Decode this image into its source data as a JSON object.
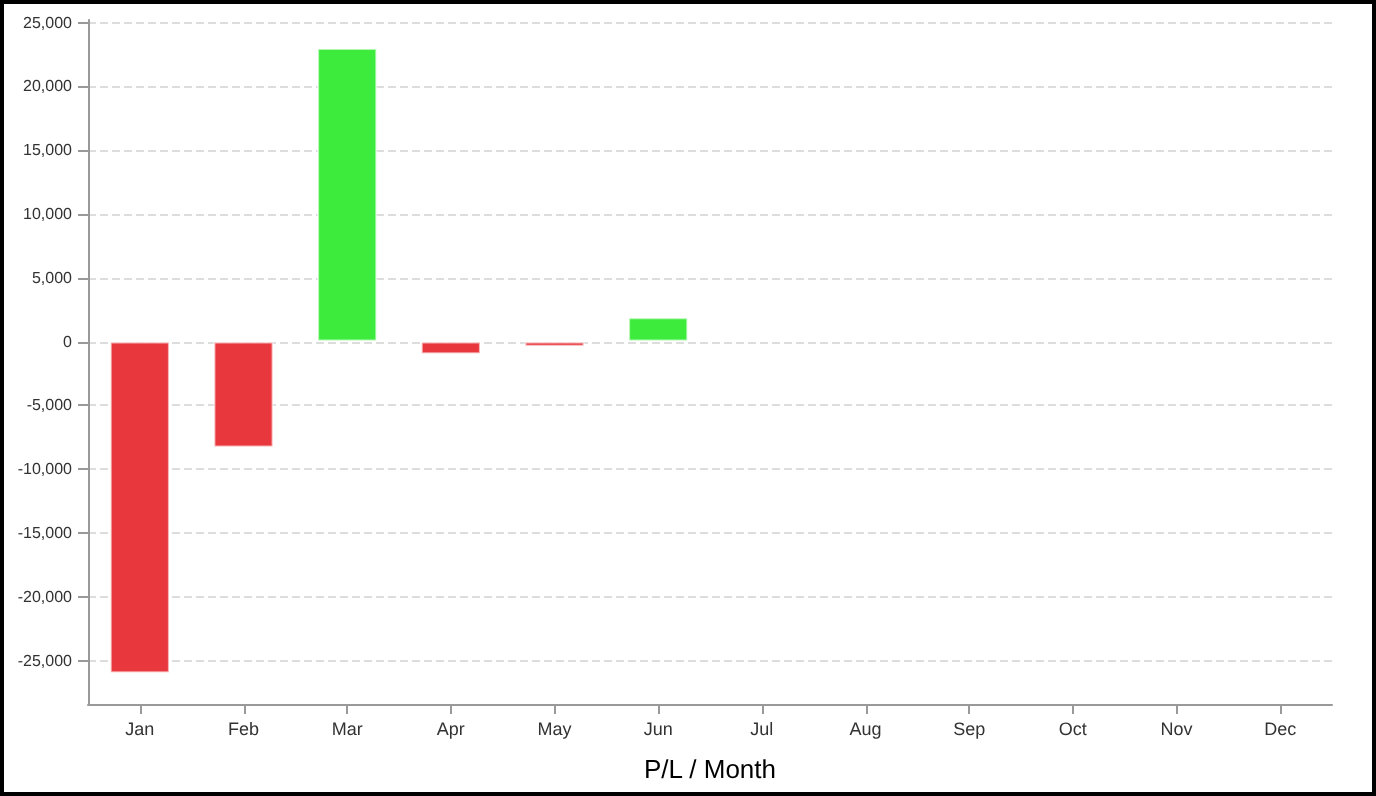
{
  "chart_data": {
    "type": "bar",
    "xlabel": "P/L / Month",
    "categories": [
      "Jan",
      "Feb",
      "Mar",
      "Apr",
      "May",
      "Jun",
      "Jul",
      "Aug",
      "Sep",
      "Oct",
      "Nov",
      "Dec"
    ],
    "values": [
      -26000,
      -8300,
      23000,
      -1000,
      -400,
      1900,
      null,
      null,
      null,
      null,
      null,
      null
    ],
    "colors": [
      "#e8383d",
      "#e8383d",
      "#3deb3d",
      "#e8383d",
      "#e8383d",
      "#3deb3d",
      "#e8383d",
      "#e8383d",
      "#e8383d",
      "#e8383d",
      "#e8383d",
      "#e8383d"
    ],
    "ylim": [
      -28400,
      25200
    ],
    "yticks": [
      {
        "value": -25000,
        "label": "-25,000"
      },
      {
        "value": -20000,
        "label": "-20,000"
      },
      {
        "value": -15000,
        "label": "-15,000"
      },
      {
        "value": -10000,
        "label": "-10,000"
      },
      {
        "value": -5000,
        "label": "-5,000"
      },
      0,
      {
        "value": 5000,
        "label": "5,000"
      },
      {
        "value": 10000,
        "label": "10,000"
      },
      {
        "value": 15000,
        "label": "15,000"
      },
      {
        "value": 20000,
        "label": "20,000"
      },
      {
        "value": 25000,
        "label": "25,000"
      }
    ],
    "grid": "y"
  }
}
